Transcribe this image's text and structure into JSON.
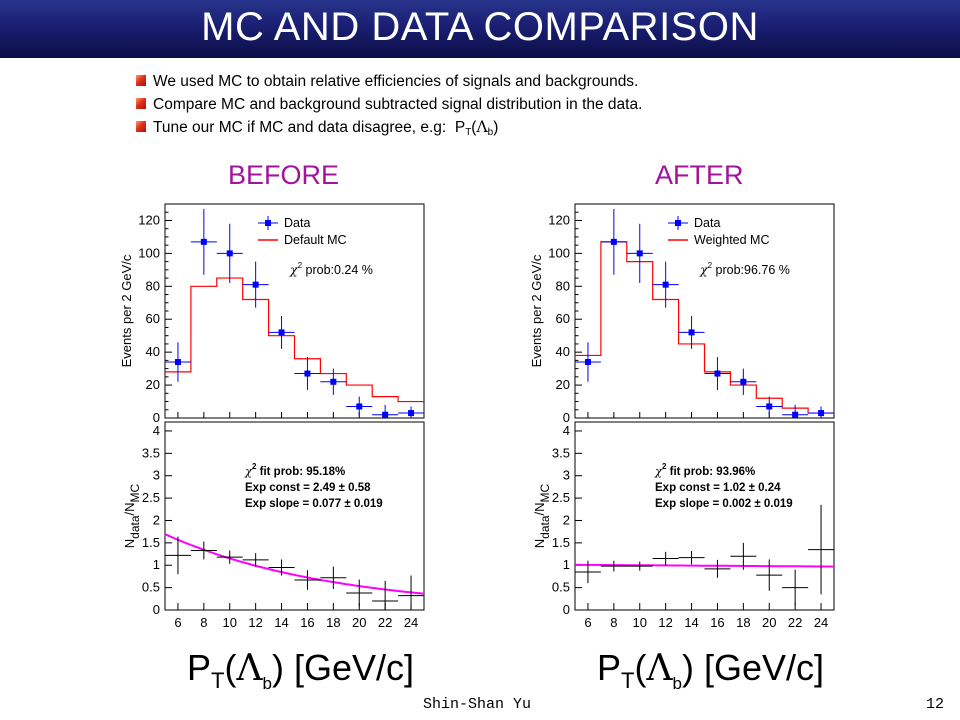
{
  "slide": {
    "title": "MC AND DATA COMPARISON",
    "bullets": [
      "We used MC to obtain relative efficiencies of signals and backgrounds.",
      "Compare MC and background subtracted signal distribution in the data.",
      "Tune our MC if MC and data disagree, e.g:"
    ],
    "bullet3_suffix": {
      "p": "P",
      "t": "T",
      "open": "(",
      "lambda": "Λ",
      "b": "b",
      "close": ")"
    },
    "before_label": "BEFORE",
    "after_label": "AFTER",
    "xaxis_big_label": {
      "p": "P",
      "t": "T",
      "open": "(",
      "lambda": "Λ",
      "b": "b",
      "close": ")",
      "unit": "[GeV/c]"
    },
    "footer_name": "Shin-Shan Yu",
    "page_number": "12"
  },
  "colors": {
    "title_bar": "#1a1f73",
    "panel_label": "#a0149b",
    "data_marker": "#0000ff",
    "mc_line": "#ff0000",
    "fit_line_before": "#ff00ff",
    "fit_line_after": "#ff00ff",
    "bullet_marker": "#e2311d"
  },
  "chart_data": [
    {
      "panel": "before",
      "type": "histogram",
      "ylabel": "Events per 2 GeV/c",
      "xlim": [
        5,
        25
      ],
      "ylim": [
        0,
        130
      ],
      "xticks": [
        6,
        8,
        10,
        12,
        14,
        16,
        18,
        20,
        22,
        24
      ],
      "yticks": [
        0,
        20,
        40,
        60,
        80,
        100,
        120
      ],
      "legend": {
        "data": "Data",
        "mc": "Default MC"
      },
      "annotation": {
        "chi2": "χ",
        "sup": "2",
        "text": " prob:0.24 %"
      },
      "data_points": {
        "x": [
          6,
          8,
          10,
          12,
          14,
          16,
          18,
          20,
          22,
          24
        ],
        "y": [
          34,
          107,
          100,
          81,
          52,
          27,
          22,
          7,
          2,
          3
        ],
        "yerr": [
          12,
          20,
          18,
          14,
          10,
          10,
          8,
          6,
          6,
          4
        ]
      },
      "mc_step": {
        "edges": [
          5,
          7,
          9,
          11,
          13,
          15,
          17,
          19,
          21,
          23,
          25
        ],
        "values": [
          28,
          80,
          85,
          72,
          50,
          36,
          27,
          20,
          13,
          10
        ]
      },
      "ratio": {
        "ylabel": "N",
        "ylabel_sub1": "data",
        "ylabel_mid": "/N",
        "ylabel_sub2": "MC",
        "ylim": [
          0,
          4.2
        ],
        "yticks": [
          0,
          0.5,
          1,
          1.5,
          2,
          2.5,
          3,
          3.5,
          4
        ],
        "ytick_labels": [
          "0",
          "0.5",
          "1",
          "1.5",
          "2",
          "2.5",
          "3",
          "3.5",
          "4"
        ],
        "fit_lines": [
          {
            "chi": "χ",
            "sup": "2",
            "text": " fit prob: 95.18%"
          },
          {
            "text": "Exp const = 2.49 ± 0.58"
          },
          {
            "text": "Exp slope = 0.077 ± 0.019"
          }
        ],
        "points": {
          "x": [
            6,
            8,
            10,
            12,
            14,
            16,
            18,
            20,
            22,
            24
          ],
          "y": [
            1.22,
            1.33,
            1.18,
            1.12,
            0.95,
            0.67,
            0.72,
            0.38,
            0.2,
            0.32
          ],
          "yerr": [
            0.42,
            0.2,
            0.15,
            0.15,
            0.18,
            0.22,
            0.25,
            0.3,
            0.45,
            0.45
          ]
        },
        "fit": {
          "kind": "exp_decay",
          "const": 2.49,
          "slope": 0.077
        }
      }
    },
    {
      "panel": "after",
      "type": "histogram",
      "ylabel": "Events per 2 GeV/c",
      "xlim": [
        5,
        25
      ],
      "ylim": [
        0,
        130
      ],
      "xticks": [
        6,
        8,
        10,
        12,
        14,
        16,
        18,
        20,
        22,
        24
      ],
      "yticks": [
        0,
        20,
        40,
        60,
        80,
        100,
        120
      ],
      "legend": {
        "data": "Data",
        "mc": "Weighted MC"
      },
      "annotation": {
        "chi2": "χ",
        "sup": "2",
        "text": " prob:96.76 %"
      },
      "data_points": {
        "x": [
          6,
          8,
          10,
          12,
          14,
          16,
          18,
          20,
          22,
          24
        ],
        "y": [
          34,
          107,
          100,
          81,
          52,
          27,
          22,
          7,
          2,
          3
        ],
        "yerr": [
          12,
          20,
          18,
          14,
          10,
          10,
          8,
          6,
          6,
          4
        ]
      },
      "mc_step": {
        "edges": [
          5,
          7,
          9,
          11,
          13,
          15,
          17,
          19,
          21,
          23,
          25
        ],
        "values": [
          38,
          107,
          95,
          72,
          45,
          28,
          20,
          12,
          6,
          3
        ]
      },
      "ratio": {
        "ylabel": "N",
        "ylabel_sub1": "data",
        "ylabel_mid": "/N",
        "ylabel_sub2": "MC",
        "ylim": [
          0,
          4.2
        ],
        "yticks": [
          0,
          0.5,
          1,
          1.5,
          2,
          2.5,
          3,
          3.5,
          4
        ],
        "ytick_labels": [
          "0",
          "0.5",
          "1",
          "1.5",
          "2",
          "2.5",
          "3",
          "3.5",
          "4"
        ],
        "fit_lines": [
          {
            "chi": "χ",
            "sup": "2",
            "text": " fit prob: 93.96%"
          },
          {
            "text": "Exp const = 1.02 ± 0.24"
          },
          {
            "text": "Exp slope = 0.002 ± 0.019"
          }
        ],
        "points": {
          "x": [
            6,
            8,
            10,
            12,
            14,
            16,
            18,
            20,
            22,
            24
          ],
          "y": [
            0.85,
            0.98,
            0.98,
            1.15,
            1.17,
            0.92,
            1.2,
            0.78,
            0.5,
            1.35
          ],
          "yerr": [
            0.25,
            0.12,
            0.1,
            0.15,
            0.15,
            0.2,
            0.3,
            0.35,
            0.4,
            1.0
          ]
        },
        "fit": {
          "kind": "exp_decay",
          "const": 1.02,
          "slope": 0.002
        }
      }
    }
  ]
}
